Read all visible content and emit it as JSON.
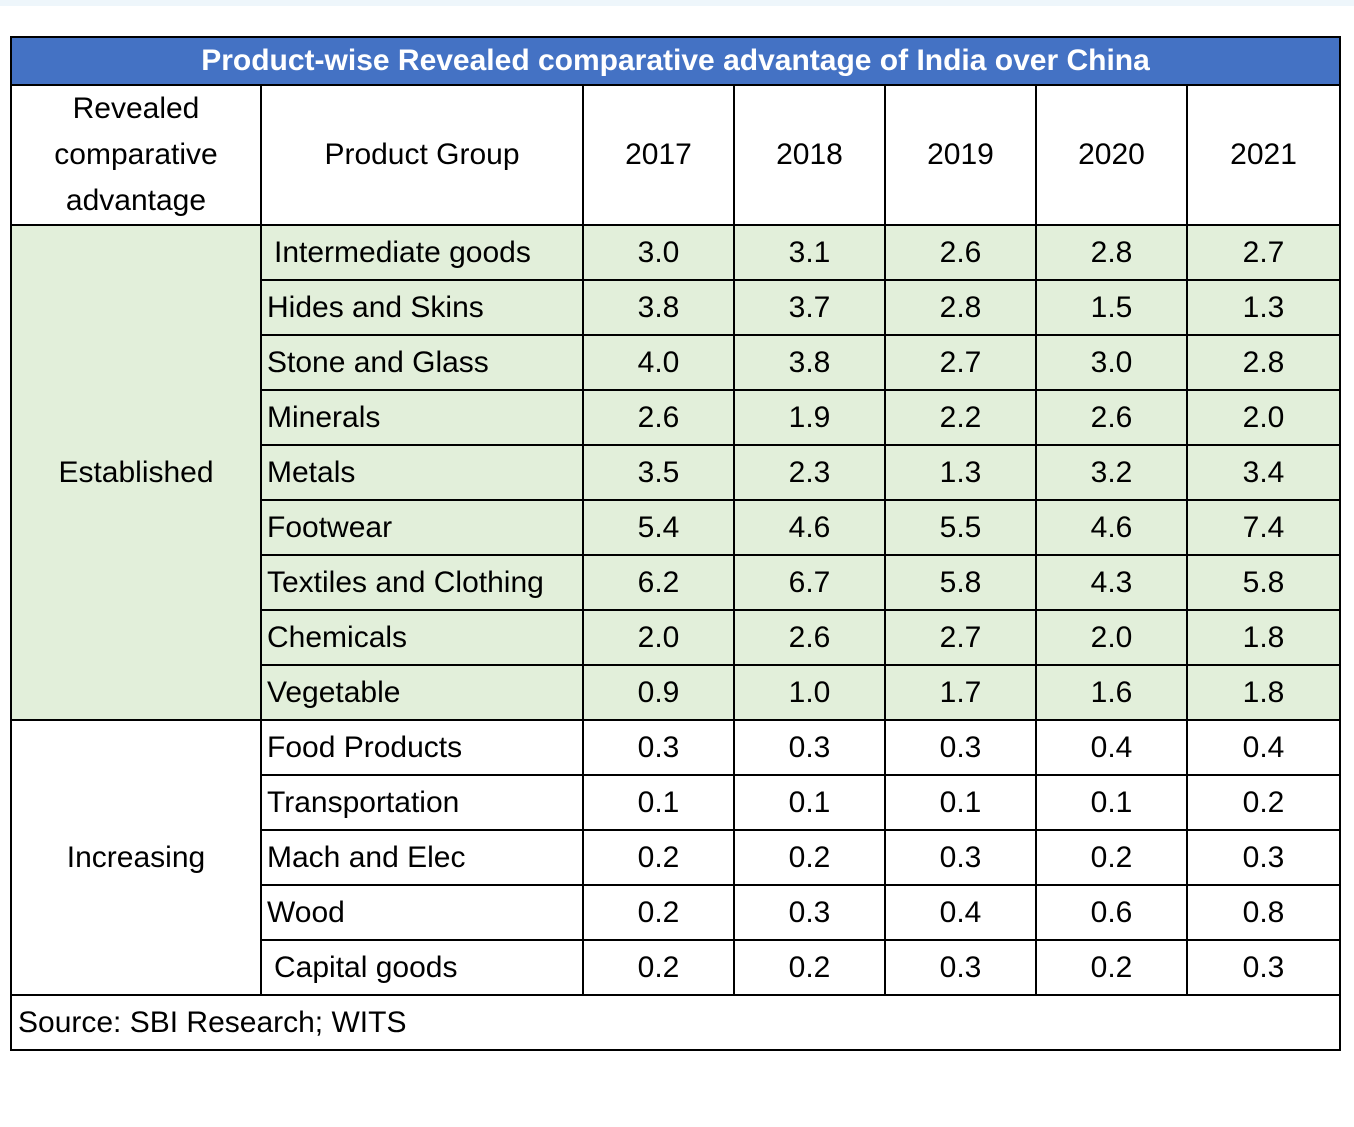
{
  "colors": {
    "title_bg": "#4472c4",
    "title_text": "#ffffff",
    "established_bg": "#e2efda",
    "border": "#000000"
  },
  "chart_data": {
    "type": "table",
    "title": "Product-wise Revealed comparative advantage of India over China",
    "header": {
      "rca": "Revealed comparative advantage",
      "product_group": "Product Group",
      "years": [
        "2017",
        "2018",
        "2019",
        "2020",
        "2021"
      ]
    },
    "groups": [
      {
        "name": "Established",
        "rows": [
          {
            "product": "Intermediate goods",
            "values": [
              "3.0",
              "3.1",
              "2.6",
              "2.8",
              "2.7"
            ]
          },
          {
            "product": "Hides and Skins",
            "values": [
              "3.8",
              "3.7",
              "2.8",
              "1.5",
              "1.3"
            ]
          },
          {
            "product": "Stone and Glass",
            "values": [
              "4.0",
              "3.8",
              "2.7",
              "3.0",
              "2.8"
            ]
          },
          {
            "product": "Minerals",
            "values": [
              "2.6",
              "1.9",
              "2.2",
              "2.6",
              "2.0"
            ]
          },
          {
            "product": "Metals",
            "values": [
              "3.5",
              "2.3",
              "1.3",
              "3.2",
              "3.4"
            ]
          },
          {
            "product": "Footwear",
            "values": [
              "5.4",
              "4.6",
              "5.5",
              "4.6",
              "7.4"
            ]
          },
          {
            "product": "Textiles and Clothing",
            "values": [
              "6.2",
              "6.7",
              "5.8",
              "4.3",
              "5.8"
            ]
          },
          {
            "product": "Chemicals",
            "values": [
              "2.0",
              "2.6",
              "2.7",
              "2.0",
              "1.8"
            ]
          },
          {
            "product": "Vegetable",
            "values": [
              "0.9",
              "1.0",
              "1.7",
              "1.6",
              "1.8"
            ]
          }
        ]
      },
      {
        "name": "Increasing",
        "rows": [
          {
            "product": "Food Products",
            "values": [
              "0.3",
              "0.3",
              "0.3",
              "0.4",
              "0.4"
            ]
          },
          {
            "product": "Transportation",
            "values": [
              "0.1",
              "0.1",
              "0.1",
              "0.1",
              "0.2"
            ]
          },
          {
            "product": "Mach and Elec",
            "values": [
              "0.2",
              "0.2",
              "0.3",
              "0.2",
              "0.3"
            ]
          },
          {
            "product": "Wood",
            "values": [
              "0.2",
              "0.3",
              "0.4",
              "0.6",
              "0.8"
            ]
          },
          {
            "product": "Capital goods",
            "values": [
              "0.2",
              "0.2",
              "0.3",
              "0.2",
              "0.3"
            ]
          }
        ]
      }
    ],
    "source": "Source: SBI Research; WITS"
  }
}
